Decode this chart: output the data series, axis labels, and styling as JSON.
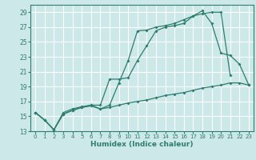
{
  "title": "",
  "xlabel": "Humidex (Indice chaleur)",
  "bg_color": "#cce8e8",
  "grid_color": "#ffffff",
  "line_color": "#2e7d6e",
  "xlim": [
    -0.5,
    23.5
  ],
  "ylim": [
    13,
    30
  ],
  "xticks": [
    0,
    1,
    2,
    3,
    4,
    5,
    6,
    7,
    8,
    9,
    10,
    11,
    12,
    13,
    14,
    15,
    16,
    17,
    18,
    19,
    20,
    21,
    22,
    23
  ],
  "yticks": [
    13,
    15,
    17,
    19,
    21,
    23,
    25,
    27,
    29
  ],
  "series1_x": [
    0,
    1,
    2,
    3,
    4,
    5,
    6,
    7,
    8,
    9,
    10,
    11,
    12,
    13,
    14,
    15,
    16,
    17,
    18,
    19,
    20,
    21
  ],
  "series1_y": [
    15.5,
    14.5,
    13.2,
    15.3,
    15.8,
    16.2,
    16.4,
    16.0,
    16.5,
    19.5,
    22.5,
    26.5,
    26.6,
    27.0,
    27.2,
    27.5,
    28.0,
    28.5,
    28.8,
    29.0,
    29.0,
    20.5
  ],
  "series2_x": [
    0,
    1,
    2,
    3,
    4,
    5,
    6,
    7,
    8,
    9,
    10,
    11,
    12,
    13,
    14,
    15,
    16,
    17,
    18,
    19,
    20,
    21,
    22,
    23
  ],
  "series2_y": [
    15.5,
    14.5,
    13.2,
    15.3,
    15.8,
    16.2,
    16.5,
    16.5,
    20.0,
    20.0,
    20.2,
    22.5,
    24.5,
    26.5,
    27.0,
    27.2,
    27.5,
    28.5,
    29.2,
    27.5,
    23.5,
    23.2,
    22.0,
    19.2
  ],
  "series3_x": [
    0,
    1,
    2,
    3,
    4,
    5,
    6,
    7,
    8,
    9,
    10,
    11,
    12,
    13,
    14,
    15,
    16,
    17,
    18,
    19,
    20,
    21,
    22,
    23
  ],
  "series3_y": [
    15.5,
    14.5,
    13.2,
    15.5,
    16.0,
    16.3,
    16.5,
    16.0,
    16.2,
    16.5,
    16.8,
    17.0,
    17.2,
    17.5,
    17.8,
    18.0,
    18.2,
    18.5,
    18.8,
    19.0,
    19.2,
    19.5,
    19.5,
    19.2
  ]
}
